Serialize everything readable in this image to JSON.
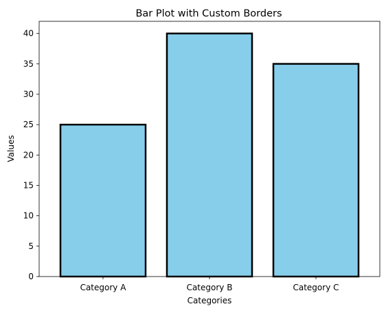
{
  "chart_data": {
    "type": "bar",
    "title": "Bar Plot with Custom Borders",
    "xlabel": "Categories",
    "ylabel": "Values",
    "categories": [
      "Category A",
      "Category B",
      "Category C"
    ],
    "values": [
      25,
      40,
      35
    ],
    "ylim": [
      0,
      42
    ],
    "yticks": [
      0,
      5,
      10,
      15,
      20,
      25,
      30,
      35,
      40
    ],
    "grid": false,
    "colors": {
      "bar_fill": "#87CEEB",
      "bar_edge": "#000000"
    }
  }
}
